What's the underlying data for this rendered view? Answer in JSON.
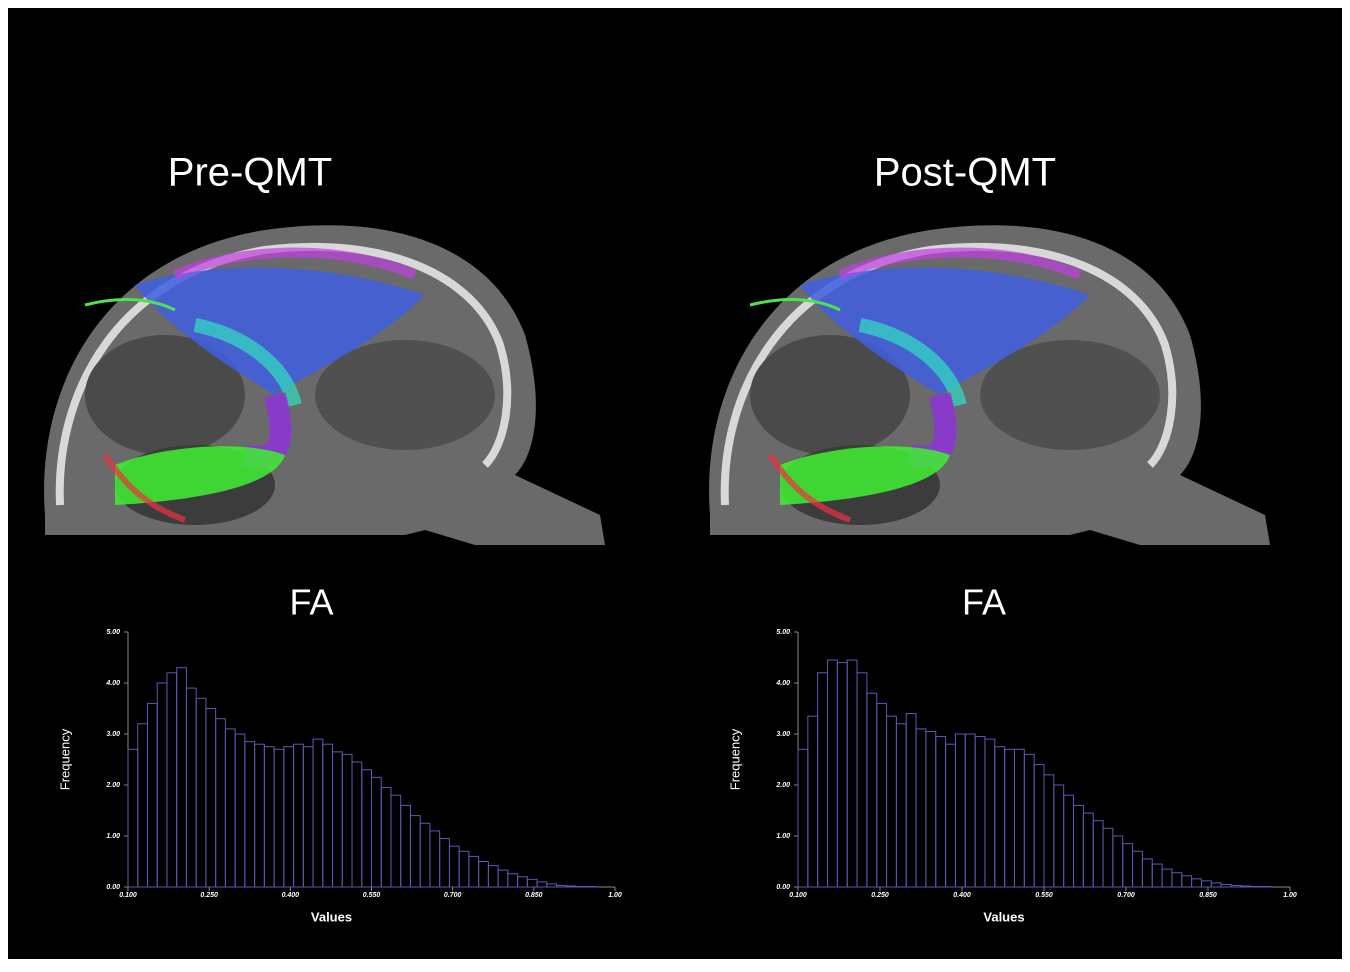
{
  "image_titles": [
    "Pre-QMT",
    "Post-QMT"
  ],
  "chart_data": [
    {
      "type": "histogram",
      "title": "FA",
      "x_label": "Values",
      "y_label": "Frequency",
      "color": "#5a5ab4",
      "bins": [
        0.1,
        0.118,
        0.136,
        0.154,
        0.172,
        0.19,
        0.208,
        0.226,
        0.244,
        0.262,
        0.28,
        0.298,
        0.316,
        0.334,
        0.352,
        0.37,
        0.388,
        0.406,
        0.424,
        0.442,
        0.46,
        0.478,
        0.496,
        0.514,
        0.532,
        0.55,
        0.568,
        0.586,
        0.604,
        0.622,
        0.64,
        0.658,
        0.676,
        0.694,
        0.712,
        0.73,
        0.748,
        0.766,
        0.784,
        0.802,
        0.82,
        0.838,
        0.856,
        0.874,
        0.892,
        0.91,
        0.928,
        0.946,
        0.964,
        0.982,
        1.0
      ],
      "values": [
        2.7,
        3.2,
        3.6,
        4.0,
        4.2,
        4.3,
        3.9,
        3.7,
        3.5,
        3.3,
        3.1,
        3.0,
        2.85,
        2.8,
        2.75,
        2.7,
        2.75,
        2.8,
        2.75,
        2.9,
        2.8,
        2.65,
        2.6,
        2.45,
        2.3,
        2.15,
        1.95,
        1.8,
        1.6,
        1.4,
        1.25,
        1.1,
        0.95,
        0.8,
        0.7,
        0.6,
        0.5,
        0.42,
        0.33,
        0.26,
        0.2,
        0.15,
        0.1,
        0.06,
        0.03,
        0.02,
        0.01,
        0.01,
        0,
        0
      ],
      "xlim": [
        0.1,
        1.0
      ],
      "xticks": [
        {
          "value": 0.1,
          "label": "0.100"
        },
        {
          "value": 0.25,
          "label": "0.250"
        },
        {
          "value": 0.4,
          "label": "0.400"
        },
        {
          "value": 0.55,
          "label": "0.550"
        },
        {
          "value": 0.7,
          "label": "0.700"
        },
        {
          "value": 0.85,
          "label": "0.850"
        },
        {
          "value": 1,
          "label": "1.00"
        }
      ],
      "ylim": [
        0,
        5
      ],
      "yticks": [
        {
          "value": 0,
          "label": "0.00"
        },
        {
          "value": 1,
          "label": "1.00"
        },
        {
          "value": 2,
          "label": "2.00"
        },
        {
          "value": 3,
          "label": "3.00"
        },
        {
          "value": 4,
          "label": "4.00"
        },
        {
          "value": 5,
          "label": "5.00"
        }
      ]
    },
    {
      "type": "histogram",
      "title": "FA",
      "x_label": "Values",
      "y_label": "Frequency",
      "color": "#5a5ab4",
      "bins": [
        0.1,
        0.118,
        0.136,
        0.154,
        0.172,
        0.19,
        0.208,
        0.226,
        0.244,
        0.262,
        0.28,
        0.298,
        0.316,
        0.334,
        0.352,
        0.37,
        0.388,
        0.406,
        0.424,
        0.442,
        0.46,
        0.478,
        0.496,
        0.514,
        0.532,
        0.55,
        0.568,
        0.586,
        0.604,
        0.622,
        0.64,
        0.658,
        0.676,
        0.694,
        0.712,
        0.73,
        0.748,
        0.766,
        0.784,
        0.802,
        0.82,
        0.838,
        0.856,
        0.874,
        0.892,
        0.91,
        0.928,
        0.946,
        0.964,
        0.982,
        1.0
      ],
      "values": [
        2.7,
        3.35,
        4.2,
        4.45,
        4.4,
        4.45,
        4.2,
        3.8,
        3.6,
        3.35,
        3.2,
        3.4,
        3.1,
        3.05,
        2.95,
        2.8,
        3.0,
        3.0,
        2.95,
        2.9,
        2.75,
        2.7,
        2.7,
        2.6,
        2.4,
        2.2,
        2.0,
        1.8,
        1.6,
        1.45,
        1.3,
        1.15,
        1.0,
        0.85,
        0.7,
        0.55,
        0.45,
        0.35,
        0.28,
        0.22,
        0.16,
        0.12,
        0.08,
        0.05,
        0.03,
        0.02,
        0.01,
        0.01,
        0,
        0
      ],
      "xlim": [
        0.1,
        1.0
      ],
      "xticks": [
        {
          "value": 0.1,
          "label": "0.100"
        },
        {
          "value": 0.25,
          "label": "0.250"
        },
        {
          "value": 0.4,
          "label": "0.400"
        },
        {
          "value": 0.55,
          "label": "0.550"
        },
        {
          "value": 0.7,
          "label": "0.700"
        },
        {
          "value": 0.85,
          "label": "0.850"
        },
        {
          "value": 1,
          "label": "1.00"
        }
      ],
      "ylim": [
        0,
        5
      ],
      "yticks": [
        {
          "value": 0,
          "label": "0.00"
        },
        {
          "value": 1,
          "label": "1.00"
        },
        {
          "value": 2,
          "label": "2.00"
        },
        {
          "value": 3,
          "label": "3.00"
        },
        {
          "value": 4,
          "label": "4.00"
        },
        {
          "value": 5,
          "label": "5.00"
        }
      ]
    }
  ]
}
